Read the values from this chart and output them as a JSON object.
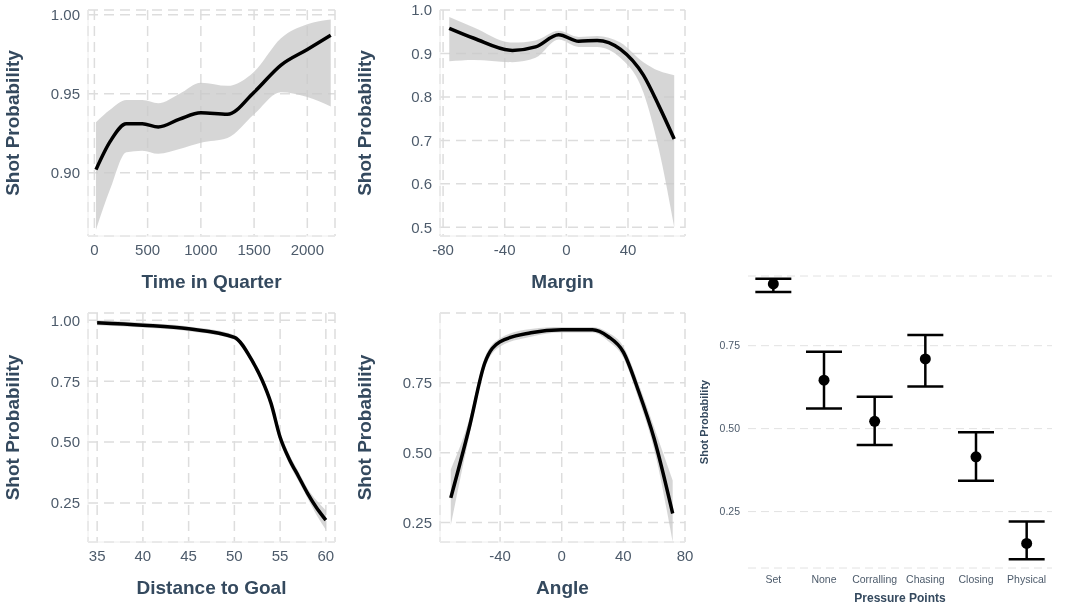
{
  "chart_data": [
    {
      "type": "line",
      "xlabel": "Time in Quarter",
      "ylabel": "Shot Probability",
      "grid": true,
      "xlim": [
        -60,
        2260
      ],
      "xticks": [
        0,
        500,
        1000,
        1500,
        2000
      ],
      "ylim": [
        0.86,
        1.003
      ],
      "yticks": [
        {
          "value": 0.9,
          "label": "0.90"
        },
        {
          "value": 0.95,
          "label": "0.95"
        },
        {
          "value": 1.0,
          "label": "1.00"
        }
      ],
      "x": [
        15,
        150,
        300,
        450,
        600,
        800,
        1000,
        1250,
        1500,
        1750,
        2000,
        2220
      ],
      "series": [
        {
          "color": "#000000",
          "values": [
            0.902,
            0.92,
            0.931,
            0.931,
            0.929,
            0.934,
            0.938,
            0.937,
            0.951,
            0.968,
            0.978,
            0.987
          ],
          "lower": [
            0.864,
            0.89,
            0.913,
            0.914,
            0.912,
            0.915,
            0.919,
            0.922,
            0.937,
            0.951,
            0.948,
            0.942
          ],
          "upper": [
            0.932,
            0.94,
            0.946,
            0.946,
            0.944,
            0.95,
            0.957,
            0.955,
            0.964,
            0.985,
            0.994,
            0.997
          ]
        }
      ]
    },
    {
      "type": "line",
      "xlabel": "Margin",
      "ylabel": "Shot Probability",
      "grid": true,
      "xlim": [
        -82,
        77
      ],
      "xticks": [
        -80,
        -40,
        0,
        40
      ],
      "ylim": [
        0.48,
        1.0
      ],
      "yticks": [
        {
          "value": 0.5,
          "label": "0.5"
        },
        {
          "value": 0.6,
          "label": "0.6"
        },
        {
          "value": 0.7,
          "label": "0.7"
        },
        {
          "value": 0.8,
          "label": "0.8"
        },
        {
          "value": 0.9,
          "label": "0.9"
        },
        {
          "value": 1.0,
          "label": "1.0"
        }
      ],
      "x": [
        -76,
        -60,
        -35,
        -20,
        -5,
        8,
        20,
        35,
        50,
        60,
        70
      ],
      "series": [
        {
          "color": "#000000",
          "values": [
            0.958,
            0.935,
            0.907,
            0.915,
            0.943,
            0.928,
            0.93,
            0.91,
            0.85,
            0.78,
            0.703
          ],
          "lower": [
            0.882,
            0.885,
            0.88,
            0.89,
            0.932,
            0.915,
            0.915,
            0.89,
            0.81,
            0.68,
            0.5
          ],
          "upper": [
            0.984,
            0.96,
            0.925,
            0.93,
            0.952,
            0.938,
            0.94,
            0.925,
            0.88,
            0.86,
            0.85
          ]
        }
      ]
    },
    {
      "type": "line",
      "xlabel": "Distance to Goal",
      "ylabel": "Shot Probability",
      "grid": true,
      "xlim": [
        34,
        61
      ],
      "xticks": [
        35,
        40,
        45,
        50,
        55,
        60
      ],
      "ylim": [
        0.09,
        1.03
      ],
      "yticks": [
        {
          "value": 0.25,
          "label": "0.25"
        },
        {
          "value": 0.5,
          "label": "0.50"
        },
        {
          "value": 0.75,
          "label": "0.75"
        },
        {
          "value": 1.0,
          "label": "1.00"
        }
      ],
      "x": [
        35,
        40,
        45,
        50,
        52,
        53,
        54,
        55,
        56,
        57,
        58,
        59,
        60
      ],
      "series": [
        {
          "color": "#000000",
          "values": [
            0.99,
            0.98,
            0.965,
            0.93,
            0.83,
            0.757,
            0.66,
            0.52,
            0.43,
            0.36,
            0.29,
            0.23,
            0.18
          ],
          "lower": [
            0.98,
            0.97,
            0.955,
            0.92,
            0.82,
            0.745,
            0.645,
            0.5,
            0.41,
            0.34,
            0.27,
            0.2,
            0.14
          ],
          "upper": [
            1.0,
            0.99,
            0.975,
            0.94,
            0.84,
            0.77,
            0.675,
            0.54,
            0.45,
            0.38,
            0.31,
            0.26,
            0.22
          ]
        }
      ]
    },
    {
      "type": "line",
      "xlabel": "Angle",
      "ylabel": "Shot Probability",
      "grid": true,
      "xlim": [
        -79,
        80
      ],
      "xticks": [
        -40,
        0,
        40,
        80
      ],
      "ylim": [
        0.18,
        1.0
      ],
      "yticks": [
        {
          "value": 0.25,
          "label": "0.25"
        },
        {
          "value": 0.5,
          "label": "0.50"
        },
        {
          "value": 0.75,
          "label": "0.75"
        }
      ],
      "x": [
        -72,
        -60,
        -50,
        -40,
        -20,
        0,
        20,
        30,
        40,
        50,
        60,
        72
      ],
      "series": [
        {
          "color": "#000000",
          "values": [
            0.338,
            0.59,
            0.82,
            0.897,
            0.929,
            0.94,
            0.94,
            0.916,
            0.86,
            0.718,
            0.55,
            0.282
          ],
          "lower": [
            0.24,
            0.56,
            0.8,
            0.88,
            0.915,
            0.93,
            0.93,
            0.9,
            0.84,
            0.69,
            0.51,
            0.18
          ],
          "upper": [
            0.44,
            0.62,
            0.84,
            0.91,
            0.943,
            0.95,
            0.95,
            0.93,
            0.88,
            0.745,
            0.59,
            0.4
          ]
        }
      ]
    },
    {
      "type": "scatter",
      "xlabel": "Pressure Points",
      "ylabel": "Shot Probability",
      "grid": "y",
      "marker": "circle",
      "color": "#000000",
      "ylim": [
        0.08,
        0.96
      ],
      "yticks": [
        {
          "value": 0.25,
          "label": "0.25"
        },
        {
          "value": 0.5,
          "label": "0.50"
        },
        {
          "value": 0.75,
          "label": "0.75"
        }
      ],
      "categories": [
        "Set",
        "None",
        "Corralling",
        "Chasing",
        "Closing",
        "Physical"
      ],
      "values": [
        0.936,
        0.646,
        0.522,
        0.71,
        0.415,
        0.154
      ],
      "errors": [
        [
          0.912,
          0.952
        ],
        [
          0.561,
          0.732
        ],
        [
          0.451,
          0.596
        ],
        [
          0.627,
          0.782
        ],
        [
          0.343,
          0.489
        ],
        [
          0.106,
          0.22
        ]
      ]
    }
  ]
}
